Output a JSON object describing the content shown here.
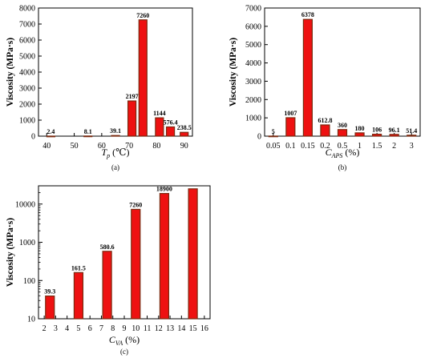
{
  "colors": {
    "bar": "#ee1111",
    "bar_outline": "#7a2a10",
    "label": "#5c1630",
    "axis": "#000000"
  },
  "chart_data": [
    {
      "panel": "(a)",
      "type": "bar",
      "x_ticks": [
        "40",
        "50",
        "60",
        "70",
        "80",
        "90"
      ],
      "x_range": [
        37,
        93
      ],
      "bars": [
        {
          "x": 41.5,
          "value": 2.4,
          "label": "2.4"
        },
        {
          "x": 55,
          "value": 8.1,
          "label": "8.1"
        },
        {
          "x": 65,
          "value": 39.1,
          "label": "39.1"
        },
        {
          "x": 71,
          "value": 2197,
          "label": "2197"
        },
        {
          "x": 75,
          "value": 7260,
          "label": "7260"
        },
        {
          "x": 81,
          "value": 1144,
          "label": "1144"
        },
        {
          "x": 85,
          "value": 576.4,
          "label": "576.4"
        },
        {
          "x": 90,
          "value": 238.5,
          "label": "238.5"
        }
      ],
      "ylim": [
        0,
        8000
      ],
      "y_ticks": [
        0,
        1000,
        2000,
        3000,
        4000,
        5000,
        6000,
        7000,
        8000
      ],
      "ylabel": "Viscosity (MPa·s)",
      "xlabel_main": "T",
      "xlabel_sub": "p",
      "xlabel_unit": "(℃)",
      "caption": "(a)"
    },
    {
      "panel": "(b)",
      "type": "bar",
      "categories": [
        "0.05",
        "0.1",
        "0.15",
        "0.2",
        "0.5",
        "1",
        "1.5",
        "2",
        "3"
      ],
      "values": [
        5,
        1007,
        6378,
        612.8,
        360,
        180,
        106,
        96.1,
        51.4
      ],
      "labels": [
        "5",
        "1007",
        "6378",
        "612.8",
        "360",
        "180",
        "106",
        "96.1",
        "51.4"
      ],
      "ylim": [
        0,
        7000
      ],
      "y_ticks": [
        0,
        1000,
        2000,
        3000,
        4000,
        5000,
        6000,
        7000
      ],
      "ylabel": "Viscosity (MPa·s)",
      "xlabel_main": "C",
      "xlabel_sub": "APS",
      "xlabel_unit": "(%)",
      "caption": "(b)"
    },
    {
      "panel": "(c)",
      "type": "bar",
      "scale": "log",
      "x_ticks": [
        "2",
        "3",
        "4",
        "5",
        "6",
        "7",
        "8",
        "9",
        "10",
        "11",
        "12",
        "13",
        "14",
        "15",
        "16"
      ],
      "x_range": [
        1.5,
        16.5
      ],
      "bars": [
        {
          "x": 2.5,
          "value": 39.3,
          "label": "39.3"
        },
        {
          "x": 5,
          "value": 161.5,
          "label": "161.5"
        },
        {
          "x": 7.5,
          "value": 580.6,
          "label": "580.6"
        },
        {
          "x": 10,
          "value": 7260,
          "label": "7260"
        },
        {
          "x": 12.5,
          "value": 18900,
          "label": "18900"
        },
        {
          "x": 15,
          "value": 25000,
          "label": ""
        }
      ],
      "ylim": [
        10,
        30000
      ],
      "y_ticks": [
        10,
        100,
        1000,
        10000
      ],
      "ylabel": "Viscosity (MPa·s)",
      "xlabel_main": "C",
      "xlabel_sub": "VA",
      "xlabel_unit": "(%)",
      "caption": "(c)"
    }
  ]
}
